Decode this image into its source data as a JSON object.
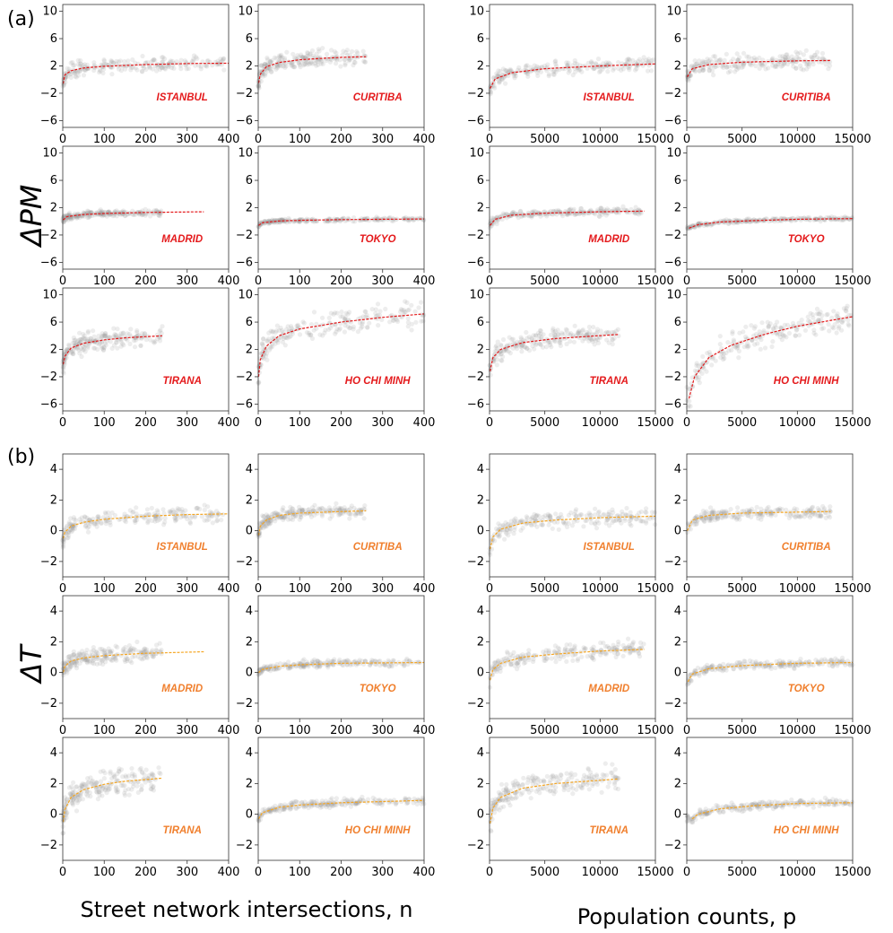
{
  "figure": {
    "panel_labels": {
      "a": "(a)",
      "b": "(b)"
    },
    "row_labels": {
      "a": "ΔPM",
      "b": "ΔT"
    },
    "x_titles": {
      "left": "Street network intersections, n",
      "right": "Population counts, p"
    },
    "colors": {
      "pm_fit": "#e41a1c",
      "t_fit": "#f5a623",
      "pm_text": "#e41a1c",
      "t_text": "#f07f2d",
      "scatter": "#9a9a9a"
    }
  },
  "chart_data": [
    {
      "type": "scatter",
      "group": "a",
      "city": "ISTANBUL",
      "x_var": "intersections",
      "xlim": [
        0,
        400
      ],
      "xticks": [
        0,
        100,
        200,
        300,
        400
      ],
      "ylim": [
        -7,
        11
      ],
      "yticks": [
        -6,
        -2,
        2,
        6,
        10
      ],
      "fit": {
        "x": [
          1,
          5,
          20,
          50,
          100,
          200,
          300,
          400
        ],
        "y": [
          -0.6,
          0.7,
          1.3,
          1.7,
          1.95,
          2.2,
          2.35,
          2.4
        ],
        "x_end": 400
      },
      "scatter_x_max": 390,
      "scatter_y_center": 1.8,
      "scatter_y_spread": 1.6
    },
    {
      "type": "scatter",
      "group": "a",
      "city": "CURITIBA",
      "x_var": "intersections",
      "xlim": [
        0,
        400
      ],
      "xticks": [
        0,
        100,
        200,
        300,
        400
      ],
      "ylim": [
        -7,
        11
      ],
      "yticks": [
        -6,
        -2,
        2,
        6,
        10
      ],
      "fit": {
        "x": [
          1,
          5,
          20,
          50,
          100,
          150,
          200,
          260
        ],
        "y": [
          -0.5,
          0.8,
          1.9,
          2.5,
          2.9,
          3.1,
          3.25,
          3.35
        ],
        "x_end": 260
      },
      "scatter_x_max": 260,
      "scatter_y_center": 2.5,
      "scatter_y_spread": 1.8
    },
    {
      "type": "scatter",
      "group": "a",
      "city": "ISTANBUL",
      "x_var": "population",
      "xlim": [
        0,
        15000
      ],
      "xticks": [
        0,
        5000,
        10000,
        15000
      ],
      "ylim": [
        -7,
        11
      ],
      "yticks": [
        -6,
        -2,
        2,
        6,
        10
      ],
      "fit": {
        "x": [
          50,
          500,
          2000,
          5000,
          10000,
          15000
        ],
        "y": [
          -1.3,
          0.1,
          1.0,
          1.6,
          2.0,
          2.3
        ],
        "x_end": 15000
      },
      "scatter_x_max": 15000,
      "scatter_y_center": 2.0,
      "scatter_y_spread": 1.5
    },
    {
      "type": "scatter",
      "group": "a",
      "city": "CURITIBA",
      "x_var": "population",
      "xlim": [
        0,
        15000
      ],
      "xticks": [
        0,
        5000,
        10000,
        15000
      ],
      "ylim": [
        -7,
        11
      ],
      "yticks": [
        -6,
        -2,
        2,
        6,
        10
      ],
      "fit": {
        "x": [
          50,
          500,
          2000,
          5000,
          10000,
          13000
        ],
        "y": [
          0.4,
          1.6,
          2.2,
          2.55,
          2.75,
          2.8
        ],
        "x_end": 13000
      },
      "scatter_x_max": 13000,
      "scatter_y_center": 2.4,
      "scatter_y_spread": 1.8
    },
    {
      "type": "scatter",
      "group": "a",
      "city": "MADRID",
      "x_var": "intersections",
      "xlim": [
        0,
        400
      ],
      "xticks": [
        0,
        100,
        200,
        300,
        400
      ],
      "ylim": [
        -7,
        11
      ],
      "yticks": [
        -6,
        -2,
        2,
        6,
        10
      ],
      "fit": {
        "x": [
          1,
          10,
          50,
          100,
          200,
          340
        ],
        "y": [
          0.2,
          0.7,
          1.0,
          1.15,
          1.3,
          1.4
        ],
        "x_end": 340
      },
      "scatter_x_max": 240,
      "scatter_y_center": 1.0,
      "scatter_y_spread": 0.7
    },
    {
      "type": "scatter",
      "group": "a",
      "city": "TOKYO",
      "x_var": "intersections",
      "xlim": [
        0,
        400
      ],
      "xticks": [
        0,
        100,
        200,
        300,
        400
      ],
      "ylim": [
        -7,
        11
      ],
      "yticks": [
        -6,
        -2,
        2,
        6,
        10
      ],
      "fit": {
        "x": [
          1,
          10,
          50,
          100,
          200,
          400
        ],
        "y": [
          -0.6,
          -0.2,
          0.05,
          0.15,
          0.25,
          0.35
        ],
        "x_end": 400
      },
      "scatter_x_max": 400,
      "scatter_y_center": 0.2,
      "scatter_y_spread": 0.4
    },
    {
      "type": "scatter",
      "group": "a",
      "city": "MADRID",
      "x_var": "population",
      "xlim": [
        0,
        15000
      ],
      "xticks": [
        0,
        5000,
        10000,
        15000
      ],
      "ylim": [
        -7,
        11
      ],
      "yticks": [
        -6,
        -2,
        2,
        6,
        10
      ],
      "fit": {
        "x": [
          50,
          500,
          2000,
          5000,
          10000,
          14000
        ],
        "y": [
          -0.6,
          0.3,
          0.9,
          1.2,
          1.4,
          1.5
        ],
        "x_end": 14000
      },
      "scatter_x_max": 14000,
      "scatter_y_center": 1.1,
      "scatter_y_spread": 0.8
    },
    {
      "type": "scatter",
      "group": "a",
      "city": "TOKYO",
      "x_var": "population",
      "xlim": [
        0,
        15000
      ],
      "xticks": [
        0,
        5000,
        10000,
        15000
      ],
      "ylim": [
        -7,
        11
      ],
      "yticks": [
        -6,
        -2,
        2,
        6,
        10
      ],
      "fit": {
        "x": [
          200,
          1000,
          3000,
          6000,
          10000,
          15000
        ],
        "y": [
          -1.0,
          -0.5,
          -0.1,
          0.1,
          0.3,
          0.4
        ],
        "x_end": 15000
      },
      "scatter_x_max": 15000,
      "scatter_y_center": 0.2,
      "scatter_y_spread": 0.4
    },
    {
      "type": "scatter",
      "group": "a",
      "city": "TIRANA",
      "x_var": "intersections",
      "xlim": [
        0,
        400
      ],
      "xticks": [
        0,
        100,
        200,
        300,
        400
      ],
      "ylim": [
        -7,
        11
      ],
      "yticks": [
        -6,
        -2,
        2,
        6,
        10
      ],
      "fit": {
        "x": [
          1,
          5,
          20,
          50,
          100,
          150,
          240
        ],
        "y": [
          -0.2,
          1.0,
          2.2,
          2.9,
          3.4,
          3.7,
          4.0
        ],
        "x_end": 240
      },
      "scatter_x_max": 240,
      "scatter_y_center": 2.0,
      "scatter_y_spread": 2.2
    },
    {
      "type": "scatter",
      "group": "a",
      "city": "HO CHI MINH",
      "x_var": "intersections",
      "xlim": [
        0,
        400
      ],
      "xticks": [
        0,
        100,
        200,
        300,
        400
      ],
      "ylim": [
        -7,
        11
      ],
      "yticks": [
        -6,
        -2,
        2,
        6,
        10
      ],
      "fit": {
        "x": [
          1,
          5,
          20,
          50,
          100,
          200,
          300,
          400
        ],
        "y": [
          -2.0,
          0.5,
          2.5,
          4.0,
          5.0,
          6.0,
          6.7,
          7.2
        ],
        "x_end": 400
      },
      "scatter_x_max": 400,
      "scatter_y_center": 3.0,
      "scatter_y_spread": 2.8
    },
    {
      "type": "scatter",
      "group": "a",
      "city": "TIRANA",
      "x_var": "population",
      "xlim": [
        0,
        15000
      ],
      "xticks": [
        0,
        5000,
        10000,
        15000
      ],
      "ylim": [
        -7,
        11
      ],
      "yticks": [
        -6,
        -2,
        2,
        6,
        10
      ],
      "fit": {
        "x": [
          50,
          300,
          1000,
          3000,
          6000,
          11700
        ],
        "y": [
          -1.2,
          0.8,
          2.0,
          3.0,
          3.6,
          4.2
        ],
        "x_end": 11700
      },
      "scatter_x_max": 11700,
      "scatter_y_center": 2.0,
      "scatter_y_spread": 2.2
    },
    {
      "type": "scatter",
      "group": "a",
      "city": "HO CHI MINH",
      "x_var": "population",
      "xlim": [
        0,
        15000
      ],
      "xticks": [
        0,
        5000,
        10000,
        15000
      ],
      "ylim": [
        -7,
        11
      ],
      "yticks": [
        -6,
        -2,
        2,
        6,
        10
      ],
      "fit": {
        "x": [
          200,
          700,
          2000,
          4000,
          7000,
          10000,
          15000
        ],
        "y": [
          -5.2,
          -2.0,
          0.8,
          2.6,
          4.2,
          5.4,
          6.8
        ],
        "x_end": 15000
      },
      "scatter_x_max": 15000,
      "scatter_y_center": 3.5,
      "scatter_y_spread": 2.8
    },
    {
      "type": "scatter",
      "group": "b",
      "city": "ISTANBUL",
      "x_var": "intersections",
      "xlim": [
        0,
        400
      ],
      "xticks": [
        0,
        100,
        200,
        300,
        400
      ],
      "ylim": [
        -3,
        5
      ],
      "yticks": [
        -2,
        0,
        2,
        4
      ],
      "fit": {
        "x": [
          1,
          5,
          20,
          50,
          100,
          200,
          300,
          400
        ],
        "y": [
          -0.5,
          -0.1,
          0.3,
          0.55,
          0.75,
          0.95,
          1.05,
          1.1
        ],
        "x_end": 400
      },
      "scatter_x_max": 390,
      "scatter_y_center": 0.8,
      "scatter_y_spread": 0.8
    },
    {
      "type": "scatter",
      "group": "b",
      "city": "CURITIBA",
      "x_var": "intersections",
      "xlim": [
        0,
        400
      ],
      "xticks": [
        0,
        100,
        200,
        300,
        400
      ],
      "ylim": [
        -3,
        5
      ],
      "yticks": [
        -2,
        0,
        2,
        4
      ],
      "fit": {
        "x": [
          1,
          5,
          20,
          50,
          100,
          200,
          260
        ],
        "y": [
          -0.3,
          0.3,
          0.7,
          1.0,
          1.15,
          1.25,
          1.3
        ],
        "x_end": 260
      },
      "scatter_x_max": 260,
      "scatter_y_center": 1.0,
      "scatter_y_spread": 0.6
    },
    {
      "type": "scatter",
      "group": "b",
      "city": "ISTANBUL",
      "x_var": "population",
      "xlim": [
        0,
        15000
      ],
      "xticks": [
        0,
        5000,
        10000,
        15000
      ],
      "ylim": [
        -3,
        5
      ],
      "yticks": [
        -2,
        0,
        2,
        4
      ],
      "fit": {
        "x": [
          50,
          300,
          1000,
          3000,
          6000,
          10000,
          15000
        ],
        "y": [
          -1.2,
          -0.4,
          0.1,
          0.5,
          0.7,
          0.85,
          0.95
        ],
        "x_end": 15000
      },
      "scatter_x_max": 15000,
      "scatter_y_center": 0.6,
      "scatter_y_spread": 0.8
    },
    {
      "type": "scatter",
      "group": "b",
      "city": "CURITIBA",
      "x_var": "population",
      "xlim": [
        0,
        15000
      ],
      "xticks": [
        0,
        5000,
        10000,
        15000
      ],
      "ylim": [
        -3,
        5
      ],
      "yticks": [
        -2,
        0,
        2,
        4
      ],
      "fit": {
        "x": [
          50,
          500,
          2000,
          5000,
          9000,
          13000
        ],
        "y": [
          0.0,
          0.7,
          1.0,
          1.15,
          1.2,
          1.25
        ],
        "x_end": 13000
      },
      "scatter_x_max": 13000,
      "scatter_y_center": 1.0,
      "scatter_y_spread": 0.6
    },
    {
      "type": "scatter",
      "group": "b",
      "city": "MADRID",
      "x_var": "intersections",
      "xlim": [
        0,
        400
      ],
      "xticks": [
        0,
        100,
        200,
        300,
        400
      ],
      "ylim": [
        -3,
        5
      ],
      "yticks": [
        -2,
        0,
        2,
        4
      ],
      "fit": {
        "x": [
          1,
          5,
          20,
          50,
          100,
          200,
          340
        ],
        "y": [
          0.0,
          0.4,
          0.75,
          0.95,
          1.1,
          1.25,
          1.35
        ],
        "x_end": 340
      },
      "scatter_x_max": 240,
      "scatter_y_center": 1.0,
      "scatter_y_spread": 0.8
    },
    {
      "type": "scatter",
      "group": "b",
      "city": "TOKYO",
      "x_var": "intersections",
      "xlim": [
        0,
        400
      ],
      "xticks": [
        0,
        100,
        200,
        300,
        400
      ],
      "ylim": [
        -3,
        5
      ],
      "yticks": [
        -2,
        0,
        2,
        4
      ],
      "fit": {
        "x": [
          1,
          10,
          50,
          100,
          200,
          400
        ],
        "y": [
          0.0,
          0.2,
          0.4,
          0.5,
          0.6,
          0.65
        ],
        "x_end": 400
      },
      "scatter_x_max": 400,
      "scatter_y_center": 0.5,
      "scatter_y_spread": 0.4
    },
    {
      "type": "scatter",
      "group": "b",
      "city": "MADRID",
      "x_var": "population",
      "xlim": [
        0,
        15000
      ],
      "xticks": [
        0,
        5000,
        10000,
        15000
      ],
      "ylim": [
        -3,
        5
      ],
      "yticks": [
        -2,
        0,
        2,
        4
      ],
      "fit": {
        "x": [
          50,
          300,
          1000,
          3000,
          6000,
          10000,
          14000
        ],
        "y": [
          -0.5,
          0.2,
          0.6,
          1.0,
          1.2,
          1.4,
          1.5
        ],
        "x_end": 14000
      },
      "scatter_x_max": 14000,
      "scatter_y_center": 1.0,
      "scatter_y_spread": 0.8
    },
    {
      "type": "scatter",
      "group": "b",
      "city": "TOKYO",
      "x_var": "population",
      "xlim": [
        0,
        15000
      ],
      "xticks": [
        0,
        5000,
        10000,
        15000
      ],
      "ylim": [
        -3,
        5
      ],
      "yticks": [
        -2,
        0,
        2,
        4
      ],
      "fit": {
        "x": [
          100,
          500,
          2000,
          5000,
          10000,
          15000
        ],
        "y": [
          -0.6,
          -0.1,
          0.25,
          0.45,
          0.6,
          0.65
        ],
        "x_end": 15000
      },
      "scatter_x_max": 15000,
      "scatter_y_center": 0.5,
      "scatter_y_spread": 0.4
    },
    {
      "type": "scatter",
      "group": "b",
      "city": "TIRANA",
      "x_var": "intersections",
      "xlim": [
        0,
        400
      ],
      "xticks": [
        0,
        100,
        200,
        300,
        400
      ],
      "ylim": [
        -3,
        5
      ],
      "yticks": [
        -2,
        0,
        2,
        4
      ],
      "fit": {
        "x": [
          1,
          5,
          20,
          50,
          100,
          150,
          240
        ],
        "y": [
          -0.5,
          0.3,
          1.1,
          1.6,
          1.95,
          2.15,
          2.35
        ],
        "x_end": 240
      },
      "scatter_x_max": 240,
      "scatter_y_center": 1.5,
      "scatter_y_spread": 1.2
    },
    {
      "type": "scatter",
      "group": "b",
      "city": "HO CHI MINH",
      "x_var": "intersections",
      "xlim": [
        0,
        400
      ],
      "xticks": [
        0,
        100,
        200,
        300,
        400
      ],
      "ylim": [
        -3,
        5
      ],
      "yticks": [
        -2,
        0,
        2,
        4
      ],
      "fit": {
        "x": [
          1,
          10,
          50,
          100,
          200,
          400
        ],
        "y": [
          -0.3,
          0.1,
          0.45,
          0.6,
          0.75,
          0.9
        ],
        "x_end": 400
      },
      "scatter_x_max": 400,
      "scatter_y_center": 0.6,
      "scatter_y_spread": 0.4
    },
    {
      "type": "scatter",
      "group": "b",
      "city": "TIRANA",
      "x_var": "population",
      "xlim": [
        0,
        15000
      ],
      "xticks": [
        0,
        5000,
        10000,
        15000
      ],
      "ylim": [
        -3,
        5
      ],
      "yticks": [
        -2,
        0,
        2,
        4
      ],
      "fit": {
        "x": [
          50,
          300,
          1000,
          3000,
          6000,
          11700
        ],
        "y": [
          -0.6,
          0.4,
          1.1,
          1.7,
          2.0,
          2.3
        ],
        "x_end": 11700
      },
      "scatter_x_max": 11700,
      "scatter_y_center": 1.5,
      "scatter_y_spread": 1.2
    },
    {
      "type": "scatter",
      "group": "b",
      "city": "HO CHI MINH",
      "x_var": "population",
      "xlim": [
        0,
        15000
      ],
      "xticks": [
        0,
        5000,
        10000,
        15000
      ],
      "ylim": [
        -3,
        5
      ],
      "yticks": [
        -2,
        0,
        2,
        4
      ],
      "fit": {
        "x": [
          500,
          1000,
          3000,
          6000,
          10000,
          15000
        ],
        "y": [
          -0.3,
          0.0,
          0.35,
          0.55,
          0.7,
          0.75
        ],
        "x_end": 15000
      },
      "scatter_x_max": 15000,
      "scatter_y_center": 0.5,
      "scatter_y_spread": 0.4
    }
  ]
}
